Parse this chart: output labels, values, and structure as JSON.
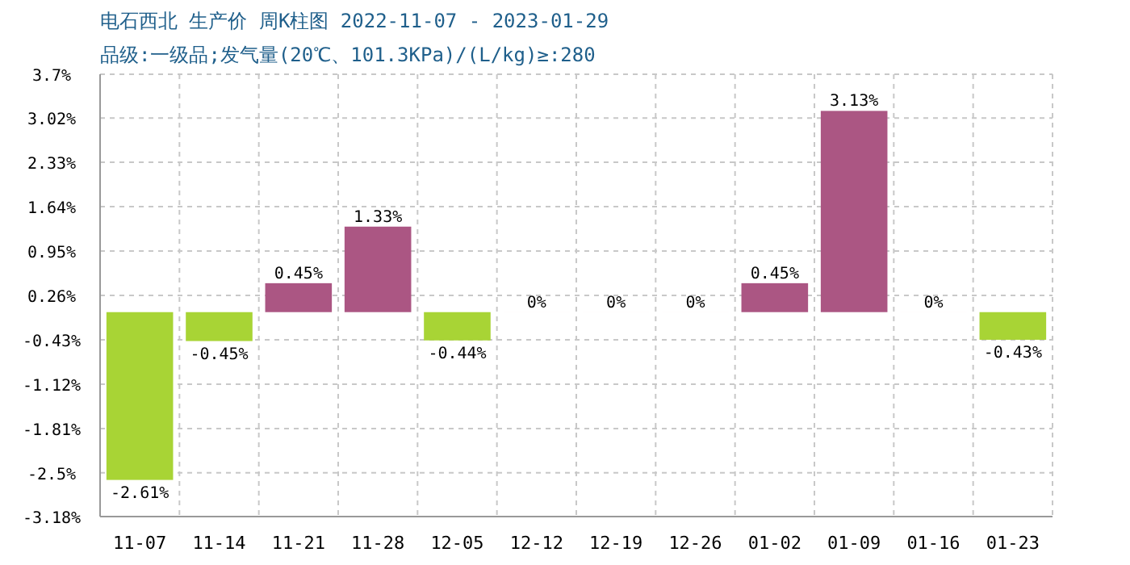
{
  "chart_data": {
    "type": "bar",
    "title": "电石西北 生产价 周K柱图 2022-11-07 - 2023-01-29",
    "subtitle": "品级:一级品;发气量(20℃、101.3KPa)/(L/kg)≥:280",
    "categories": [
      "11-07",
      "11-14",
      "11-21",
      "11-28",
      "12-05",
      "12-12",
      "12-19",
      "12-26",
      "01-02",
      "01-09",
      "01-16",
      "01-23"
    ],
    "values": [
      -2.61,
      -0.45,
      0.45,
      1.33,
      -0.44,
      0,
      0,
      0,
      0.45,
      3.13,
      0,
      -0.43
    ],
    "value_labels": [
      "-2.61%",
      "-0.45%",
      "0.45%",
      "1.33%",
      "-0.44%",
      "0%",
      "0%",
      "0%",
      "0.45%",
      "3.13%",
      "0%",
      "-0.43%"
    ],
    "colors": [
      "#a8d435",
      "#a8d435",
      "#ab5683",
      "#ab5683",
      "#a8d435",
      "#ab5683",
      "#ab5683",
      "#ab5683",
      "#ab5683",
      "#ab5683",
      "#ab5683",
      "#a8d435"
    ],
    "ylim": [
      -3.18,
      3.7
    ],
    "yticks": [
      {
        "value": 3.7,
        "label": "3.7%"
      },
      {
        "value": 3.02,
        "label": "3.02%"
      },
      {
        "value": 2.33,
        "label": "2.33%"
      },
      {
        "value": 1.64,
        "label": "1.64%"
      },
      {
        "value": 0.95,
        "label": "0.95%"
      },
      {
        "value": 0.26,
        "label": "0.26%"
      },
      {
        "value": -0.43,
        "label": "-0.43%"
      },
      {
        "value": -1.12,
        "label": "-1.12%"
      },
      {
        "value": -1.81,
        "label": "-1.81%"
      },
      {
        "value": -2.5,
        "label": "-2.5%"
      },
      {
        "value": -3.18,
        "label": "-3.18%"
      }
    ],
    "grid": true
  }
}
